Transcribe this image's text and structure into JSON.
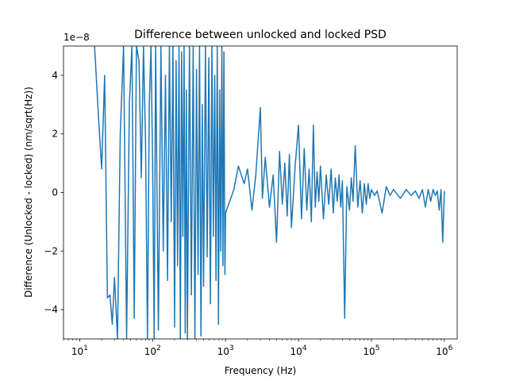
{
  "chart_data": {
    "type": "line",
    "title": "Difference between unlocked and locked PSD",
    "xlabel": "Frequency (Hz)",
    "ylabel": "Difference (Unlocked - locked) (nm/sqrt(Hz))",
    "x_scale": "log",
    "xlim": [
      6,
      1500000
    ],
    "ylim": [
      -5e-08,
      5e-08
    ],
    "y_offset_label": "1e−8",
    "x_ticks": [
      {
        "value": 10,
        "base": "10",
        "exp": "1"
      },
      {
        "value": 100,
        "base": "10",
        "exp": "2"
      },
      {
        "value": 1000,
        "base": "10",
        "exp": "3"
      },
      {
        "value": 10000,
        "base": "10",
        "exp": "4"
      },
      {
        "value": 100000,
        "base": "10",
        "exp": "5"
      },
      {
        "value": 1000000,
        "base": "10",
        "exp": "6"
      }
    ],
    "y_ticks": [
      {
        "value": -4e-08,
        "label": "−4"
      },
      {
        "value": -2e-08,
        "label": "−2"
      },
      {
        "value": 0,
        "label": "0"
      },
      {
        "value": 2e-08,
        "label": "2"
      },
      {
        "value": 4e-08,
        "label": "4"
      }
    ],
    "series": [
      {
        "color": "#1f77b4",
        "x": [
          16,
          18,
          20,
          22,
          24,
          26,
          28,
          30,
          33,
          36,
          40,
          44,
          48,
          52,
          56,
          60,
          65,
          70,
          75,
          80,
          85,
          90,
          95,
          100,
          105,
          110,
          120,
          130,
          140,
          150,
          160,
          170,
          180,
          190,
          200,
          210,
          220,
          230,
          240,
          250,
          260,
          270,
          280,
          290,
          300,
          320,
          340,
          360,
          380,
          400,
          420,
          440,
          460,
          480,
          500,
          530,
          560,
          590,
          620,
          650,
          680,
          710,
          740,
          770,
          800,
          830,
          860,
          890,
          920,
          950,
          980,
          1000,
          1300,
          1500,
          1800,
          2000,
          2300,
          2600,
          3000,
          3200,
          3500,
          4000,
          4500,
          5000,
          5500,
          6000,
          6500,
          7000,
          7500,
          8000,
          9000,
          10000,
          11000,
          12000,
          13000,
          14000,
          15000,
          16000,
          17000,
          18000,
          19000,
          20000,
          22000,
          24000,
          26000,
          28000,
          30000,
          32000,
          34000,
          36000,
          38000,
          40000,
          43000,
          46000,
          50000,
          53000,
          56000,
          60000,
          65000,
          70000,
          75000,
          80000,
          85000,
          90000,
          95000,
          100000,
          110000,
          120000,
          140000,
          160000,
          180000,
          200000,
          250000,
          300000,
          350000,
          400000,
          450000,
          500000,
          550000,
          600000,
          650000,
          700000,
          750000,
          800000,
          850000,
          900000,
          950000,
          1000000
        ],
        "y": [
          5e-08,
          2.7e-08,
          8e-09,
          4e-08,
          -3.6e-08,
          -3.5e-08,
          -4.5e-08,
          -2.9e-08,
          -5e-08,
          2e-08,
          5e-08,
          -5e-08,
          3e-08,
          5e-08,
          -4.3e-08,
          5e-08,
          4.5e-08,
          5e-09,
          5e-08,
          1.7e-08,
          -5e-08,
          3e-08,
          5e-08,
          1e-08,
          -5e-08,
          5e-08,
          -4.7e-08,
          5e-08,
          -2e-08,
          4e-08,
          -3e-08,
          5e-08,
          -1e-08,
          5e-08,
          -4.6e-08,
          4.5e-08,
          -2.5e-08,
          5e-08,
          -5e-08,
          4.8e-08,
          -1.5e-08,
          5e-08,
          -4.8e-08,
          3.5e-08,
          -5e-08,
          5e-08,
          -3.5e-08,
          5e-08,
          -5e-08,
          4.2e-08,
          -2.8e-08,
          5e-08,
          -4.9e-08,
          3e-08,
          -3.2e-08,
          5e-08,
          -2.2e-08,
          4.6e-08,
          -3.8e-08,
          5e-08,
          -1.5e-08,
          4e-08,
          -3e-08,
          5e-08,
          -4.5e-08,
          3.5e-08,
          -2e-08,
          5e-08,
          -2.5e-08,
          4.8e-08,
          -2.8e-08,
          -7e-09,
          1e-09,
          9e-09,
          3e-09,
          8e-09,
          -6e-09,
          6e-09,
          2.9e-08,
          -2e-09,
          1.2e-08,
          -5e-09,
          6e-09,
          -1.7e-08,
          1.4e-08,
          -4e-09,
          1e-08,
          -8e-09,
          1.3e-08,
          -1.2e-08,
          9e-09,
          2.3e-08,
          -9e-09,
          1.5e-08,
          -6e-09,
          8e-09,
          -1e-08,
          2.3e-08,
          -5e-09,
          7e-09,
          -3e-09,
          9e-09,
          -9e-09,
          6e-09,
          -4e-09,
          8e-09,
          -7e-09,
          5e-09,
          -3e-09,
          6e-09,
          -5e-09,
          4e-09,
          -4.3e-08,
          2e-09,
          -6e-09,
          5e-09,
          -3e-09,
          1.6e-08,
          -5e-09,
          4e-09,
          -7e-09,
          3e-09,
          -4e-09,
          3e-09,
          -2e-09,
          1e-09,
          -1e-09,
          5e-10,
          -7e-09,
          2e-09,
          -1e-09,
          1e-09,
          -2e-09,
          1e-09,
          -1e-09,
          5e-10,
          -2e-09,
          1e-09,
          -5e-09,
          1e-09,
          -3e-09,
          1e-09,
          -1e-09,
          5e-10,
          -6e-09,
          1e-09,
          -1.7e-08,
          5e-10
        ]
      }
    ]
  }
}
